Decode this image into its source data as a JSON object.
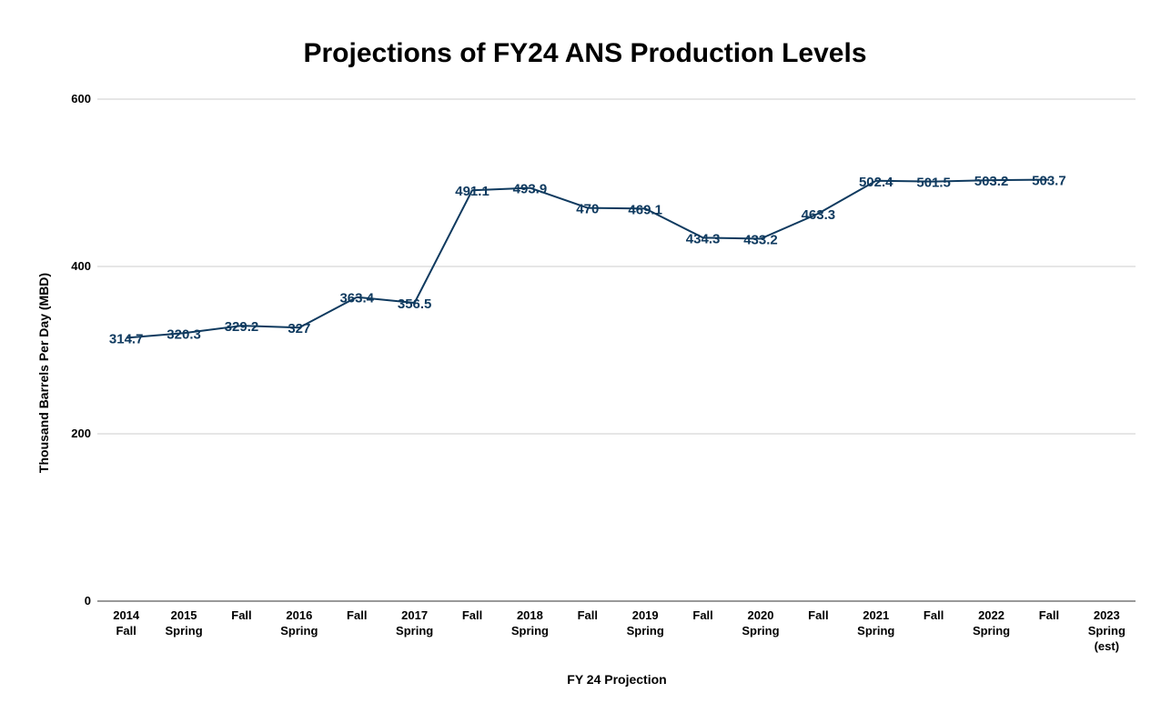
{
  "chart_data": {
    "type": "line",
    "title": "Projections of FY24 ANS Production Levels",
    "xlabel": "FY 24 Projection",
    "ylabel": "Thousand Barrels Per Day (MBD)",
    "ylim": [
      0,
      600
    ],
    "yticks": [
      "0",
      "200",
      "400",
      "600"
    ],
    "categories": [
      [
        "2014",
        "Fall"
      ],
      [
        "2015",
        "Spring"
      ],
      [
        "Fall"
      ],
      [
        "2016",
        "Spring"
      ],
      [
        "Fall"
      ],
      [
        "2017",
        "Spring"
      ],
      [
        "Fall"
      ],
      [
        "2018",
        "Spring"
      ],
      [
        "Fall"
      ],
      [
        "2019",
        "Spring"
      ],
      [
        "Fall"
      ],
      [
        "2020",
        "Spring"
      ],
      [
        "Fall"
      ],
      [
        "2021",
        "Spring"
      ],
      [
        "Fall"
      ],
      [
        "2022",
        "Spring"
      ],
      [
        "Fall"
      ],
      [
        "2023",
        "Spring",
        "(est)"
      ]
    ],
    "values": [
      314.7,
      320.3,
      329.2,
      327,
      363.4,
      356.5,
      491.1,
      493.9,
      470,
      469.1,
      434.3,
      433.2,
      463.3,
      502.4,
      501.5,
      503.2,
      503.7,
      null
    ],
    "labels": [
      "314.7",
      "320.3",
      "329.2",
      "327",
      "363.4",
      "356.5",
      "491.1",
      "493.9",
      "470",
      "469.1",
      "434.3",
      "433.2",
      "463.3",
      "502.4",
      "501.5",
      "503.2",
      "503.7",
      ""
    ],
    "line_color": "#0f3a5f",
    "grid": true,
    "legend": "none"
  }
}
